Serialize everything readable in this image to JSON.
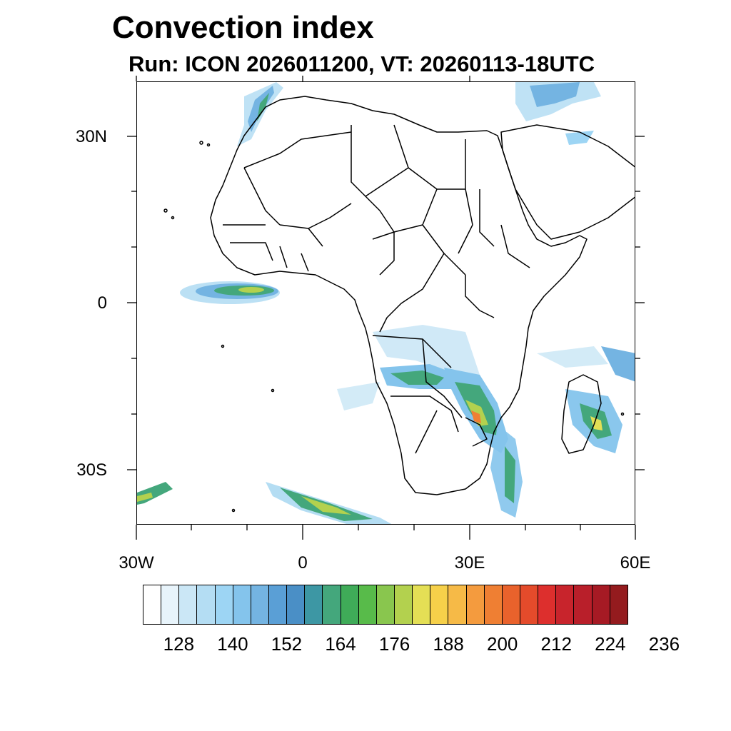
{
  "header": {
    "title": "Convection index",
    "subtitle": "Run: ICON 2026011200,  VT: 20260113-18UTC"
  },
  "map": {
    "region": "Africa",
    "lat_labels": [
      "30N",
      "0",
      "30S"
    ],
    "lon_labels": [
      "30W",
      "0",
      "30E",
      "60E"
    ],
    "lat_values": [
      30,
      0,
      -30
    ],
    "lon_values": [
      -30,
      0,
      30,
      60
    ],
    "lon_range": [
      -30,
      60
    ],
    "lat_range": [
      -40,
      40
    ]
  },
  "colorbar": {
    "colors": [
      "#ffffff",
      "#e8f4fb",
      "#cbe7f6",
      "#b4ddf3",
      "#9dd5f4",
      "#84c4ec",
      "#74b4e2",
      "#5a9fd6",
      "#4a8fc6",
      "#3d97a4",
      "#44a77c",
      "#3fab58",
      "#58bb4a",
      "#89c64e",
      "#b3d14e",
      "#e4df55",
      "#f6d04a",
      "#f6ba47",
      "#f49b3e",
      "#ef7f33",
      "#e9622c",
      "#e44b2b",
      "#dd2f2d",
      "#c8242c",
      "#b91f2a",
      "#a61a24",
      "#941b1e"
    ],
    "labels": [
      "128",
      "140",
      "152",
      "164",
      "176",
      "188",
      "200",
      "212",
      "224",
      "236"
    ]
  }
}
